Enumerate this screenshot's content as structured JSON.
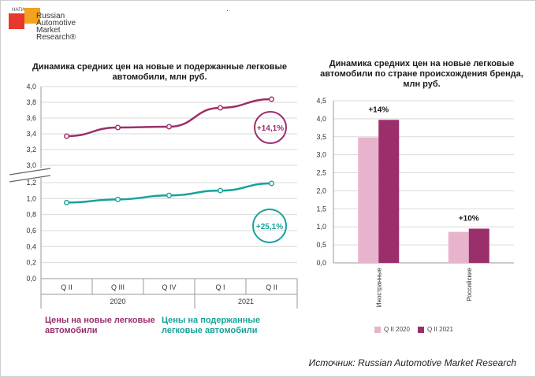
{
  "logo": {
    "small_text": "НАГИ",
    "name": "Russian Automotive Market Research®"
  },
  "header_mark": ".",
  "source": "Источник: Russian Automotive Market Research",
  "chart_data": [
    {
      "type": "line",
      "title": "Динамика средних цен на новые и подержанные легковые автомобили, млн руб.",
      "categories": [
        "Q II",
        "Q III",
        "Q IV",
        "Q I",
        "Q II"
      ],
      "year_labels": [
        "2020",
        "2021"
      ],
      "upper_axis": {
        "ylim": [
          3.0,
          4.0
        ],
        "ticks": [
          "4,0",
          "3,8",
          "3,6",
          "3,4",
          "3,2",
          "3,0"
        ]
      },
      "lower_axis": {
        "ylim": [
          0.0,
          1.2
        ],
        "ticks": [
          "1,2",
          "1,0",
          "0,8",
          "0,6",
          "0,4",
          "0,2",
          "0,0"
        ]
      },
      "series": [
        {
          "name": "Цены на новые легковые автомобили",
          "values": [
            3.37,
            3.48,
            3.49,
            3.73,
            3.84
          ],
          "color": "#9b2f6b",
          "axis": "upper",
          "change_label": "+14,1%"
        },
        {
          "name": "Цены на подержанные легковые автомобили",
          "values": [
            0.95,
            0.99,
            1.04,
            1.1,
            1.19
          ],
          "color": "#14a39a",
          "axis": "lower",
          "change_label": "+25,1%"
        }
      ]
    },
    {
      "type": "bar",
      "title": "Динамика средних цен на новые легковые автомобили по стране происхождения бренда, млн руб.",
      "categories": [
        "Иностранные",
        "Российские"
      ],
      "ylim": [
        0,
        4.5
      ],
      "yticks": [
        "4,5",
        "4,0",
        "3,5",
        "3,0",
        "2,5",
        "2,0",
        "1,5",
        "1,0",
        "0,5",
        "0,0"
      ],
      "series": [
        {
          "name": "Q II 2020",
          "values": [
            3.48,
            0.86
          ],
          "color": "#e8b4cd"
        },
        {
          "name": "Q II 2021",
          "values": [
            3.97,
            0.95
          ],
          "color": "#9b2f6b"
        }
      ],
      "change_labels": [
        "+14%",
        "+10%"
      ]
    }
  ]
}
